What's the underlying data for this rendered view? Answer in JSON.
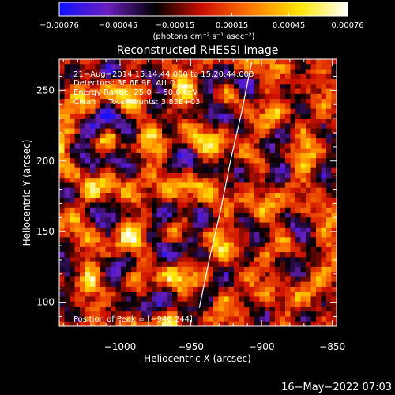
{
  "chart_data": {
    "type": "heatmap",
    "title": "Reconstructed RHESSI Image",
    "xlabel": "Heliocentric X (arcsec)",
    "ylabel": "Heliocentric Y (arcsec)",
    "xlim": [
      -1043,
      -847
    ],
    "ylim": [
      83,
      272
    ],
    "x_ticks": [
      -1000,
      -950,
      -900,
      -850
    ],
    "x_tick_labels": [
      "−1000",
      "−950",
      "−900",
      "−850"
    ],
    "y_ticks": [
      100,
      150,
      200,
      250
    ],
    "y_tick_labels": [
      "100",
      "150",
      "200",
      "250"
    ],
    "colorbar": {
      "range": [
        -0.00076,
        0.00076
      ],
      "tick_labels": [
        "−0.00076",
        "−0.00045",
        "−0.00015",
        "0.00015",
        "0.00045",
        "0.00076"
      ],
      "unit_label": "(photons cm⁻² s⁻¹ asec⁻²)",
      "colormap": "blue-purple-black-red-orange-yellow-white",
      "colors": [
        "#1010ff",
        "#6a1fc0",
        "#000000",
        "#d01000",
        "#ff7a00",
        "#ffe600",
        "#ffffff"
      ]
    },
    "annotations": [
      "21−Aug−2014 15:14:44.000 to 15:20:44.000",
      "Detectors: 3F 6F 9F, Att 0",
      "Energy Range: 25.0 − 50.0 keV",
      "Clean     Total counts: 3.83E+03"
    ],
    "peak_label": "Position of Peak = [−940,244]",
    "limb_curve": {
      "x": [
        -944,
        -937,
        -929,
        -922,
        -914,
        -907
      ],
      "y": [
        96,
        130,
        165,
        200,
        235,
        270
      ]
    },
    "grid": false,
    "legend": "none"
  },
  "footer": {
    "date": "16−May−2022 07:03"
  }
}
